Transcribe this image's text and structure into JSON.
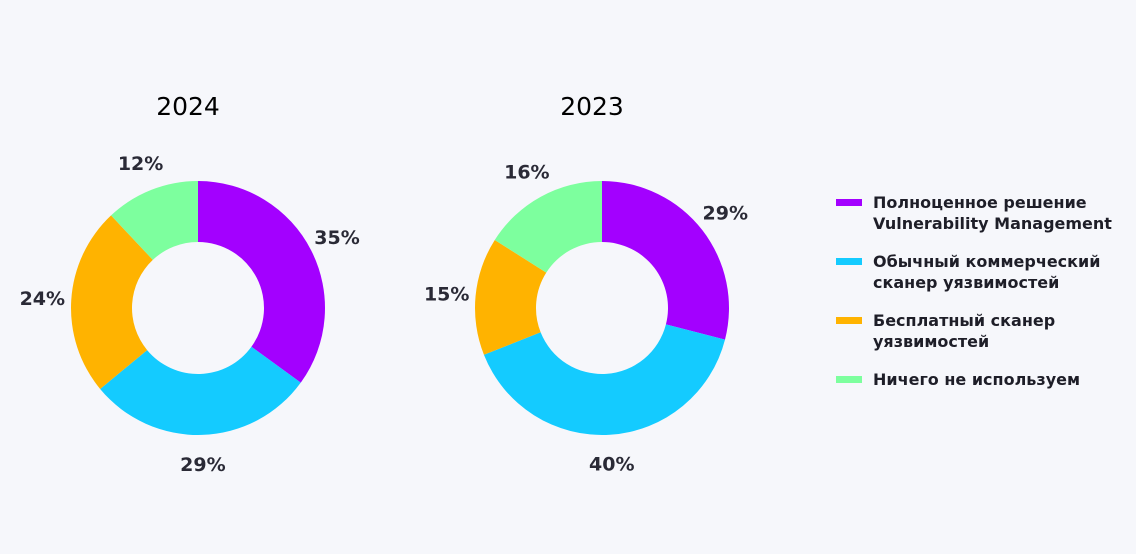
{
  "chart_data": {
    "type": "pie",
    "charts": [
      {
        "title": "2024",
        "values": [
          35,
          29,
          24,
          12
        ],
        "labels": [
          "35%",
          "29%",
          "24%",
          "12%"
        ]
      },
      {
        "title": "2023",
        "values": [
          29,
          40,
          15,
          16
        ],
        "labels": [
          "29%",
          "40%",
          "15%",
          "16%"
        ]
      }
    ],
    "categories": [
      "Полноценное решение Vulnerability Management",
      "Обычный коммерческий сканер уязвимостей",
      "Бесплатный сканер уязвимостей",
      "Ничего не используем"
    ],
    "colors": [
      "#a300ff",
      "#14cbff",
      "#ffb300",
      "#7dff9e"
    ],
    "legend_position": "right",
    "donut": true
  }
}
